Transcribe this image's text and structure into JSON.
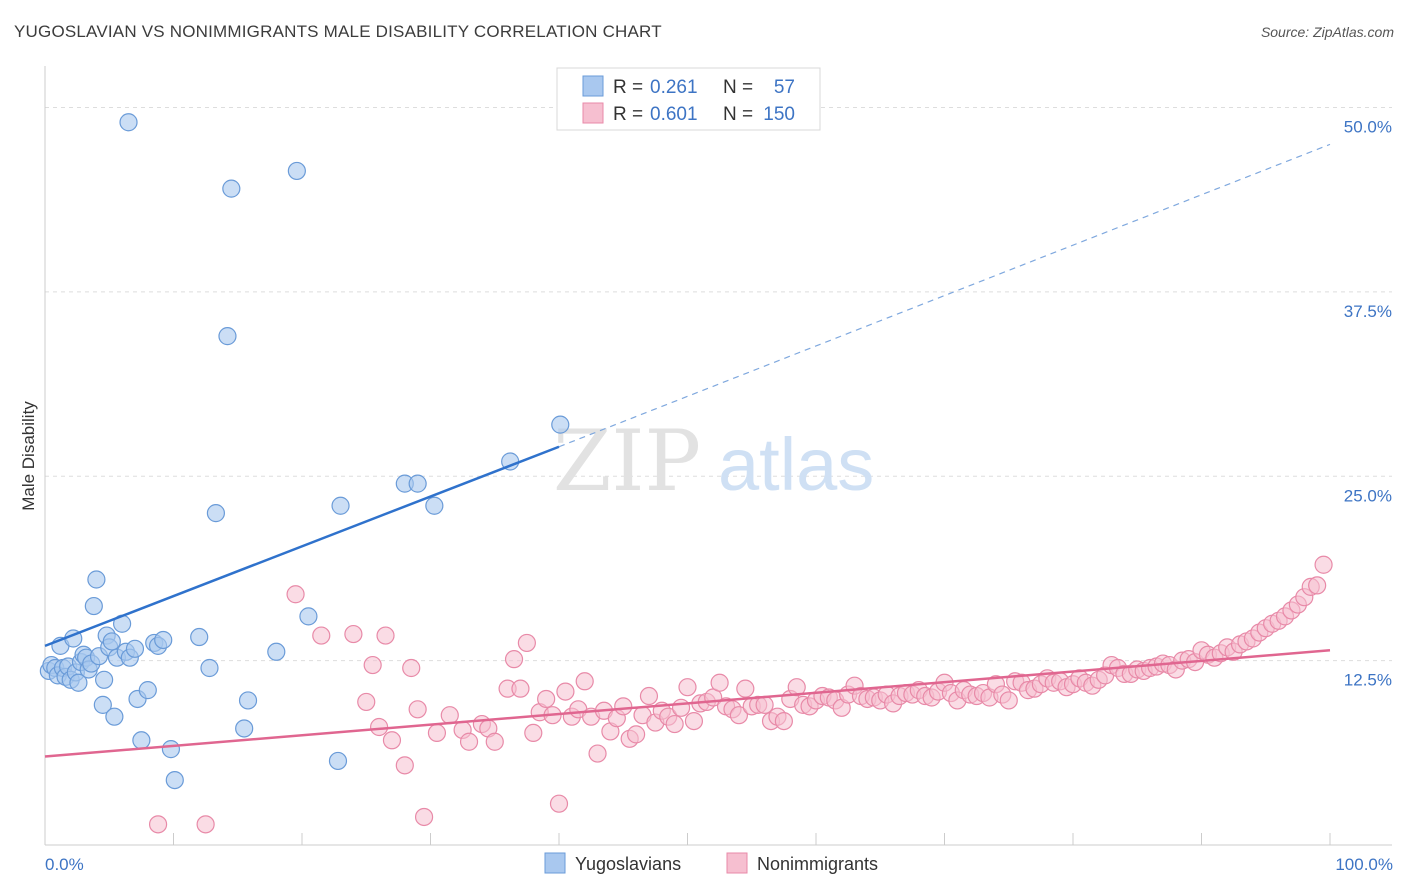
{
  "title": "YUGOSLAVIAN VS NONIMMIGRANTS MALE DISABILITY CORRELATION CHART",
  "source": "Source: ZipAtlas.com",
  "colors": {
    "yugo_fill": "#a9c8ef",
    "yugo_stroke": "#6a9bd8",
    "yugo_line": "#2f72cc",
    "non_fill": "#f6bfd0",
    "non_stroke": "#e88aa8",
    "non_line": "#e06690",
    "tick_text": "#3d74c4",
    "grid": "#dddddd"
  },
  "chart_data": {
    "type": "scatter",
    "xlabel": "",
    "ylabel": "Male Disability",
    "xlim": [
      0,
      100
    ],
    "ylim": [
      0,
      52
    ],
    "x_tick_labels": [
      "0.0%",
      "100.0%"
    ],
    "y_ticks": [
      12.5,
      25.0,
      37.5,
      50.0
    ],
    "y_tick_labels": [
      "12.5%",
      "25.0%",
      "37.5%",
      "50.0%"
    ],
    "grid": true,
    "legend": {
      "position": "top-center",
      "entries": [
        {
          "r_label": "R =",
          "r": "0.261",
          "n_label": "N =",
          "n": "57"
        },
        {
          "r_label": "R =",
          "r": "0.601",
          "n_label": "N =",
          "n": "150"
        }
      ]
    },
    "bottom_legend": [
      "Yugoslavians",
      "Nonimmigrants"
    ],
    "watermark": {
      "zip": "ZIP",
      "atlas": "atlas"
    },
    "series": [
      {
        "name": "Yugoslavians",
        "trend": {
          "x0": 0,
          "y0": 13.5,
          "x1": 40,
          "y1": 27.0,
          "x_dash_end": 100,
          "y_dash_end": 47.5
        },
        "points": [
          [
            0.3,
            11.8
          ],
          [
            0.5,
            12.2
          ],
          [
            0.8,
            12.0
          ],
          [
            1.0,
            11.5
          ],
          [
            1.2,
            13.5
          ],
          [
            1.4,
            12.0
          ],
          [
            1.6,
            11.4
          ],
          [
            1.8,
            12.1
          ],
          [
            2.0,
            11.2
          ],
          [
            2.2,
            14.0
          ],
          [
            2.4,
            11.7
          ],
          [
            2.6,
            11.0
          ],
          [
            2.8,
            12.4
          ],
          [
            3.0,
            12.9
          ],
          [
            3.2,
            12.7
          ],
          [
            3.4,
            11.9
          ],
          [
            3.6,
            12.3
          ],
          [
            3.8,
            16.2
          ],
          [
            4.0,
            18.0
          ],
          [
            4.2,
            12.8
          ],
          [
            4.5,
            9.5
          ],
          [
            4.6,
            11.2
          ],
          [
            4.8,
            14.2
          ],
          [
            5.0,
            13.4
          ],
          [
            5.2,
            13.8
          ],
          [
            5.4,
            8.7
          ],
          [
            5.6,
            12.7
          ],
          [
            6.0,
            15.0
          ],
          [
            6.3,
            13.1
          ],
          [
            6.6,
            12.7
          ],
          [
            7.0,
            13.3
          ],
          [
            7.2,
            9.9
          ],
          [
            7.5,
            7.1
          ],
          [
            8.0,
            10.5
          ],
          [
            8.5,
            13.7
          ],
          [
            8.8,
            13.5
          ],
          [
            9.2,
            13.9
          ],
          [
            9.8,
            6.5
          ],
          [
            10.1,
            4.4
          ],
          [
            12.0,
            14.1
          ],
          [
            12.8,
            12.0
          ],
          [
            13.3,
            22.5
          ],
          [
            14.2,
            34.5
          ],
          [
            14.5,
            44.5
          ],
          [
            15.5,
            7.9
          ],
          [
            15.8,
            9.8
          ],
          [
            18.0,
            13.1
          ],
          [
            19.6,
            45.7
          ],
          [
            20.5,
            15.5
          ],
          [
            22.8,
            5.7
          ],
          [
            23.0,
            23.0
          ],
          [
            28.0,
            24.5
          ],
          [
            29.0,
            24.5
          ],
          [
            30.3,
            23.0
          ],
          [
            36.2,
            26.0
          ],
          [
            40.1,
            28.5
          ],
          [
            6.5,
            49.0
          ]
        ]
      },
      {
        "name": "Nonimmigrants",
        "trend": {
          "x0": 0,
          "y0": 6.0,
          "x1": 100,
          "y1": 13.2
        },
        "points": [
          [
            8.8,
            1.4
          ],
          [
            12.5,
            1.4
          ],
          [
            19.5,
            17.0
          ],
          [
            21.5,
            14.2
          ],
          [
            24.0,
            14.3
          ],
          [
            25.0,
            9.7
          ],
          [
            25.5,
            12.2
          ],
          [
            26.0,
            8.0
          ],
          [
            26.5,
            14.2
          ],
          [
            27.0,
            7.1
          ],
          [
            28.0,
            5.4
          ],
          [
            28.5,
            12.0
          ],
          [
            29.0,
            9.2
          ],
          [
            29.5,
            1.9
          ],
          [
            30.5,
            7.6
          ],
          [
            31.5,
            8.8
          ],
          [
            32.5,
            7.8
          ],
          [
            33.0,
            7.0
          ],
          [
            34.0,
            8.2
          ],
          [
            34.5,
            7.9
          ],
          [
            35.0,
            7.0
          ],
          [
            36.0,
            10.6
          ],
          [
            36.5,
            12.6
          ],
          [
            37.0,
            10.6
          ],
          [
            37.5,
            13.7
          ],
          [
            38.0,
            7.6
          ],
          [
            38.5,
            9.0
          ],
          [
            39.0,
            9.9
          ],
          [
            39.5,
            8.8
          ],
          [
            40.0,
            2.8
          ],
          [
            40.5,
            10.4
          ],
          [
            41.0,
            8.7
          ],
          [
            41.5,
            9.2
          ],
          [
            42.0,
            11.1
          ],
          [
            42.5,
            8.7
          ],
          [
            43.0,
            6.2
          ],
          [
            43.5,
            9.1
          ],
          [
            44.0,
            7.7
          ],
          [
            44.5,
            8.6
          ],
          [
            45.0,
            9.4
          ],
          [
            45.5,
            7.2
          ],
          [
            46.0,
            7.5
          ],
          [
            46.5,
            8.8
          ],
          [
            47.0,
            10.1
          ],
          [
            47.5,
            8.3
          ],
          [
            48.0,
            9.1
          ],
          [
            48.5,
            8.7
          ],
          [
            49.0,
            8.2
          ],
          [
            49.5,
            9.3
          ],
          [
            50.0,
            10.7
          ],
          [
            50.5,
            8.4
          ],
          [
            51.0,
            9.6
          ],
          [
            51.5,
            9.7
          ],
          [
            52.0,
            10.0
          ],
          [
            52.5,
            11.0
          ],
          [
            53.0,
            9.4
          ],
          [
            53.5,
            9.2
          ],
          [
            54.0,
            8.8
          ],
          [
            54.5,
            10.6
          ],
          [
            55.0,
            9.4
          ],
          [
            55.5,
            9.5
          ],
          [
            56.0,
            9.5
          ],
          [
            56.5,
            8.4
          ],
          [
            57.0,
            8.7
          ],
          [
            57.5,
            8.4
          ],
          [
            58.0,
            9.9
          ],
          [
            58.5,
            10.7
          ],
          [
            59.0,
            9.5
          ],
          [
            59.5,
            9.4
          ],
          [
            60.0,
            9.8
          ],
          [
            60.5,
            10.1
          ],
          [
            61.0,
            10.0
          ],
          [
            61.5,
            9.8
          ],
          [
            62.0,
            9.3
          ],
          [
            62.5,
            10.2
          ],
          [
            63.0,
            10.8
          ],
          [
            63.5,
            10.1
          ],
          [
            64.0,
            9.9
          ],
          [
            64.5,
            10.0
          ],
          [
            65.0,
            9.8
          ],
          [
            65.5,
            10.2
          ],
          [
            66.0,
            9.6
          ],
          [
            66.5,
            10.1
          ],
          [
            67.0,
            10.3
          ],
          [
            67.5,
            10.2
          ],
          [
            68.0,
            10.5
          ],
          [
            68.5,
            10.1
          ],
          [
            69.0,
            10.0
          ],
          [
            69.5,
            10.4
          ],
          [
            70.0,
            11.0
          ],
          [
            70.5,
            10.3
          ],
          [
            71.0,
            9.8
          ],
          [
            71.5,
            10.5
          ],
          [
            72.0,
            10.2
          ],
          [
            72.5,
            10.1
          ],
          [
            73.0,
            10.3
          ],
          [
            73.5,
            10.0
          ],
          [
            74.0,
            10.9
          ],
          [
            74.5,
            10.2
          ],
          [
            75.0,
            9.8
          ],
          [
            75.5,
            11.1
          ],
          [
            76.0,
            11.0
          ],
          [
            76.5,
            10.5
          ],
          [
            77.0,
            10.6
          ],
          [
            77.5,
            10.9
          ],
          [
            78.0,
            11.3
          ],
          [
            78.5,
            11.0
          ],
          [
            79.0,
            11.1
          ],
          [
            79.5,
            10.7
          ],
          [
            80.0,
            10.9
          ],
          [
            80.5,
            11.3
          ],
          [
            81.0,
            11.0
          ],
          [
            81.5,
            10.8
          ],
          [
            82.0,
            11.2
          ],
          [
            82.5,
            11.5
          ],
          [
            83.0,
            12.2
          ],
          [
            83.5,
            12.0
          ],
          [
            84.0,
            11.6
          ],
          [
            84.5,
            11.6
          ],
          [
            85.0,
            11.9
          ],
          [
            85.5,
            11.8
          ],
          [
            86.0,
            12.0
          ],
          [
            86.5,
            12.1
          ],
          [
            87.0,
            12.3
          ],
          [
            87.5,
            12.2
          ],
          [
            88.0,
            11.9
          ],
          [
            88.5,
            12.5
          ],
          [
            89.0,
            12.6
          ],
          [
            89.5,
            12.4
          ],
          [
            90.0,
            13.2
          ],
          [
            90.5,
            12.9
          ],
          [
            91.0,
            12.7
          ],
          [
            91.5,
            13.0
          ],
          [
            92.0,
            13.4
          ],
          [
            92.5,
            13.1
          ],
          [
            93.0,
            13.6
          ],
          [
            93.5,
            13.8
          ],
          [
            94.0,
            14.0
          ],
          [
            94.5,
            14.4
          ],
          [
            95.0,
            14.7
          ],
          [
            95.5,
            15.0
          ],
          [
            96.0,
            15.2
          ],
          [
            96.5,
            15.5
          ],
          [
            97.0,
            15.9
          ],
          [
            97.5,
            16.3
          ],
          [
            98.0,
            16.8
          ],
          [
            98.5,
            17.5
          ],
          [
            99.0,
            17.6
          ],
          [
            99.5,
            19.0
          ]
        ]
      }
    ]
  }
}
